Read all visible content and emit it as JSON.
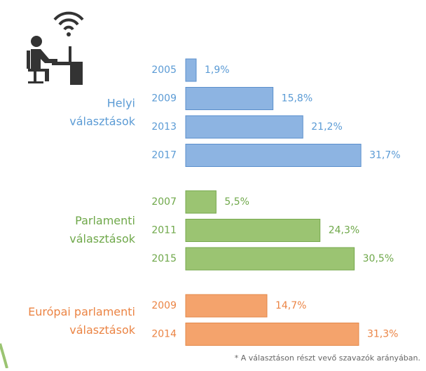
{
  "chart_data": {
    "type": "bar",
    "groups": [
      {
        "label": [
          "Helyi",
          "választások"
        ],
        "color": "#8db4e2",
        "stroke": "#5b8fcc",
        "text_color": "#5b9bd5",
        "categories": [
          "2005",
          "2009",
          "2013",
          "2017"
        ],
        "values": [
          1.9,
          15.8,
          21.2,
          31.7
        ],
        "value_labels": [
          "1,9%",
          "15,8%",
          "21,2%",
          "31,7%"
        ]
      },
      {
        "label": [
          "Parlamenti",
          "választások"
        ],
        "color": "#9bc472",
        "stroke": "#77a84e",
        "text_color": "#6fa84a",
        "categories": [
          "2007",
          "2011",
          "2015"
        ],
        "values": [
          5.5,
          24.3,
          30.5
        ],
        "value_labels": [
          "5,5%",
          "24,3%",
          "30,5%"
        ]
      },
      {
        "label": [
          "Európai parlamenti",
          "választások"
        ],
        "color": "#f4a36c",
        "stroke": "#e3884a",
        "text_color": "#eb8444",
        "categories": [
          "2009",
          "2014"
        ],
        "values": [
          14.7,
          31.3
        ],
        "value_labels": [
          "14,7%",
          "31,3%"
        ]
      }
    ],
    "note": "* A választáson részt vevő szavazók arányában."
  }
}
